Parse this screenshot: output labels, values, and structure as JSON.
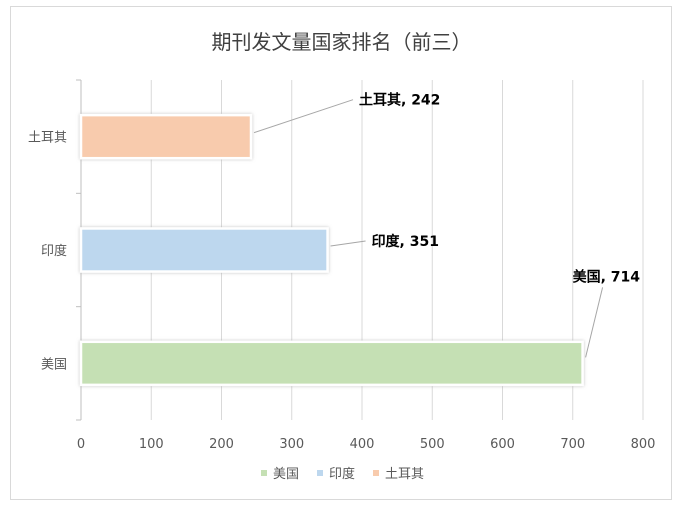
{
  "chart_data": {
    "type": "bar",
    "orientation": "horizontal",
    "title": "期刊发文量国家排名（前三）",
    "categories": [
      "美国",
      "印度",
      "土耳其"
    ],
    "series": [
      {
        "name": "美国",
        "values": [
          714,
          null,
          null
        ],
        "color": "#c5e0b4"
      },
      {
        "name": "印度",
        "values": [
          null,
          351,
          null
        ],
        "color": "#bdd7ee"
      },
      {
        "name": "土耳其",
        "values": [
          null,
          null,
          242
        ],
        "color": "#f8cbad"
      }
    ],
    "data_labels": [
      "美国, 714",
      "印度, 351",
      "土耳其, 242"
    ],
    "xlim": [
      0,
      800
    ],
    "x_ticks": [
      "0",
      "100",
      "200",
      "300",
      "400",
      "500",
      "600",
      "700",
      "800"
    ],
    "grid": true,
    "legend": "bottom"
  }
}
